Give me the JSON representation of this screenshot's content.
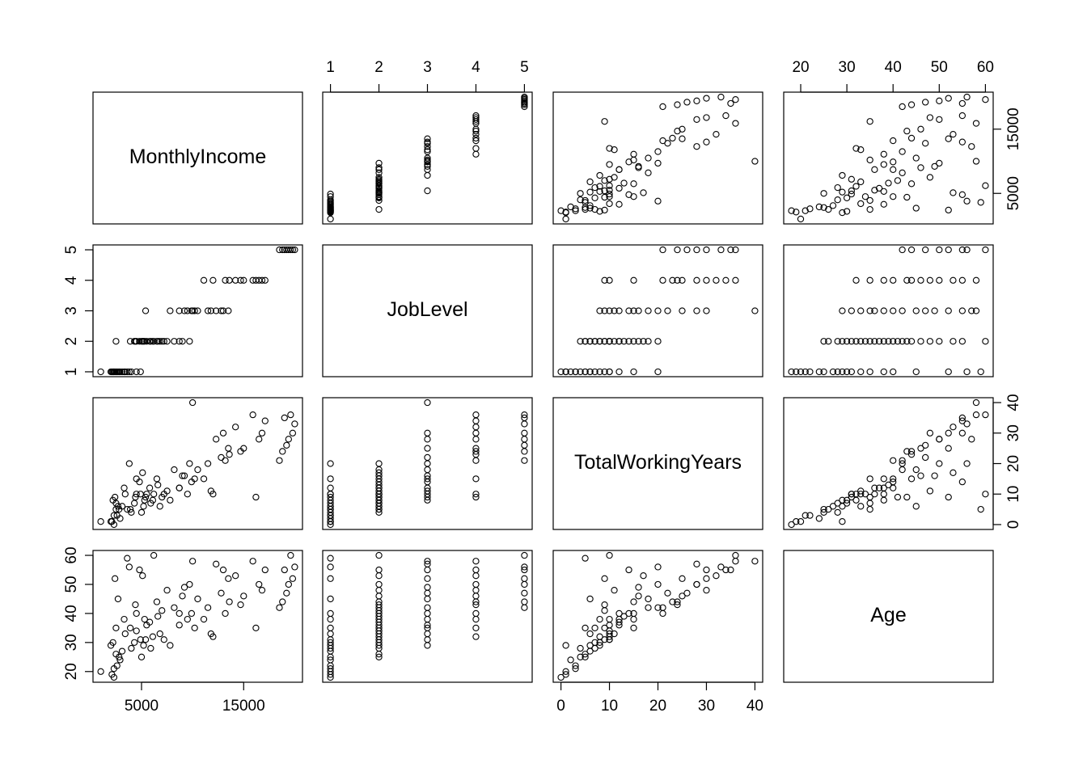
{
  "chart_data": {
    "type": "scatter-matrix",
    "point_color": "#000000",
    "variables": [
      {
        "name": "MonthlyIncome",
        "lim": [
          249,
          20759
        ],
        "ticks": [
          5000,
          15000
        ],
        "values": [
          2100,
          2300,
          1009,
          2600,
          2800,
          3100,
          2200,
          3400,
          2500,
          4000,
          2900,
          3300,
          2700,
          4500,
          2400,
          3800,
          2000,
          3600,
          2300,
          4900,
          5200,
          6100,
          4500,
          2500,
          5800,
          7000,
          6500,
          4300,
          5500,
          8200,
          9700,
          6800,
          5000,
          7500,
          4800,
          6200,
          5300,
          9000,
          3900,
          6600,
          5900,
          4400,
          7200,
          5100,
          8700,
          10200,
          11500,
          9500,
          12800,
          13500,
          8700,
          10500,
          5400,
          13000,
          9900,
          10000,
          11800,
          7800,
          12300,
          9200,
          13600,
          16500,
          14200,
          15000,
          17100,
          13200,
          16800,
          12000,
          15900,
          14700,
          11100,
          16200,
          19200,
          19800,
          18500,
          19999,
          19600,
          18800,
          19400,
          19000
        ]
      },
      {
        "name": "JobLevel",
        "lim": [
          0.84,
          5.16
        ],
        "ticks": [
          1,
          2,
          3,
          4,
          5
        ],
        "values": [
          1,
          1,
          1,
          1,
          1,
          1,
          1,
          1,
          1,
          1,
          1,
          1,
          1,
          1,
          1,
          1,
          1,
          1,
          1,
          1,
          2,
          2,
          2,
          2,
          2,
          2,
          2,
          2,
          2,
          2,
          2,
          2,
          2,
          2,
          2,
          2,
          2,
          2,
          2,
          2,
          2,
          2,
          2,
          2,
          2,
          3,
          3,
          3,
          3,
          3,
          3,
          3,
          3,
          3,
          3,
          3,
          3,
          3,
          3,
          3,
          4,
          4,
          4,
          4,
          4,
          4,
          4,
          4,
          4,
          4,
          4,
          4,
          5,
          5,
          5,
          5,
          5,
          5,
          5,
          5
        ]
      },
      {
        "name": "TotalWorkingYears",
        "lim": [
          -1.6,
          41.6
        ],
        "ticks": [
          0,
          10,
          20,
          30,
          40
        ],
        "values": [
          1,
          0,
          1,
          3,
          5,
          6,
          8,
          10,
          7,
          4,
          2,
          12,
          6,
          15,
          9,
          20,
          1,
          5,
          3,
          10,
          6,
          8,
          10,
          5,
          12,
          9,
          15,
          7,
          10,
          18,
          20,
          6,
          4,
          11,
          14,
          10,
          8,
          16,
          5,
          13,
          7,
          9,
          10,
          17,
          12,
          15,
          20,
          10,
          22,
          25,
          12,
          18,
          9,
          30,
          14,
          40,
          11,
          8,
          28,
          16,
          23,
          28,
          32,
          25,
          34,
          21,
          30,
          10,
          36,
          24,
          15,
          9,
          26,
          30,
          21,
          33,
          36,
          24,
          28,
          35
        ]
      },
      {
        "name": "Age",
        "lim": [
          16.32,
          61.68
        ],
        "ticks": [
          20,
          30,
          40,
          50,
          60
        ],
        "values": [
          19,
          18,
          20,
          22,
          25,
          27,
          30,
          33,
          35,
          28,
          24,
          38,
          45,
          40,
          52,
          56,
          29,
          59,
          21,
          31,
          29,
          32,
          34,
          26,
          37,
          41,
          44,
          30,
          36,
          42,
          50,
          33,
          25,
          48,
          55,
          60,
          38,
          46,
          35,
          39,
          28,
          43,
          31,
          53,
          40,
          35,
          42,
          38,
          47,
          52,
          36,
          45,
          31,
          55,
          40,
          58,
          33,
          29,
          57,
          49,
          44,
          50,
          53,
          46,
          55,
          40,
          48,
          32,
          58,
          43,
          38,
          35,
          47,
          52,
          42,
          56,
          60,
          44,
          50,
          55
        ]
      }
    ]
  }
}
